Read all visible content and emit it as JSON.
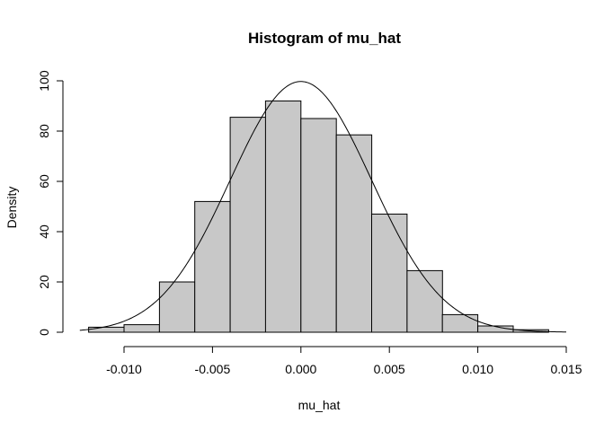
{
  "chart_data": {
    "type": "bar",
    "title": "Histogram of mu_hat",
    "xlabel": "mu_hat",
    "ylabel": "Density",
    "xlim": [
      -0.0125,
      0.015
    ],
    "ylim": [
      0,
      100
    ],
    "grid": false,
    "bar_color": "#c8c8c8",
    "x_ticks": [
      -0.01,
      -0.005,
      0.0,
      0.005,
      0.01,
      0.015
    ],
    "x_tick_labels": [
      "-0.010",
      "-0.005",
      "0.000",
      "0.005",
      "0.010",
      "0.015"
    ],
    "y_ticks": [
      0,
      20,
      40,
      60,
      80,
      100
    ],
    "y_tick_labels": [
      "0",
      "20",
      "40",
      "60",
      "80",
      "100"
    ],
    "bins": [
      {
        "x0": -0.012,
        "x1": -0.01,
        "density": 2
      },
      {
        "x0": -0.01,
        "x1": -0.008,
        "density": 3
      },
      {
        "x0": -0.008,
        "x1": -0.006,
        "density": 20
      },
      {
        "x0": -0.006,
        "x1": -0.004,
        "density": 52
      },
      {
        "x0": -0.004,
        "x1": -0.002,
        "density": 85.5
      },
      {
        "x0": -0.002,
        "x1": 0.0,
        "density": 92
      },
      {
        "x0": 0.0,
        "x1": 0.002,
        "density": 85
      },
      {
        "x0": 0.002,
        "x1": 0.004,
        "density": 78.5
      },
      {
        "x0": 0.004,
        "x1": 0.006,
        "density": 47
      },
      {
        "x0": 0.006,
        "x1": 0.008,
        "density": 24.5
      },
      {
        "x0": 0.008,
        "x1": 0.01,
        "density": 7
      },
      {
        "x0": 0.01,
        "x1": 0.012,
        "density": 2.5
      },
      {
        "x0": 0.012,
        "x1": 0.014,
        "density": 1
      }
    ],
    "density_curve": {
      "distribution": "normal",
      "mean": 0.0,
      "sd": 0.004
    }
  }
}
